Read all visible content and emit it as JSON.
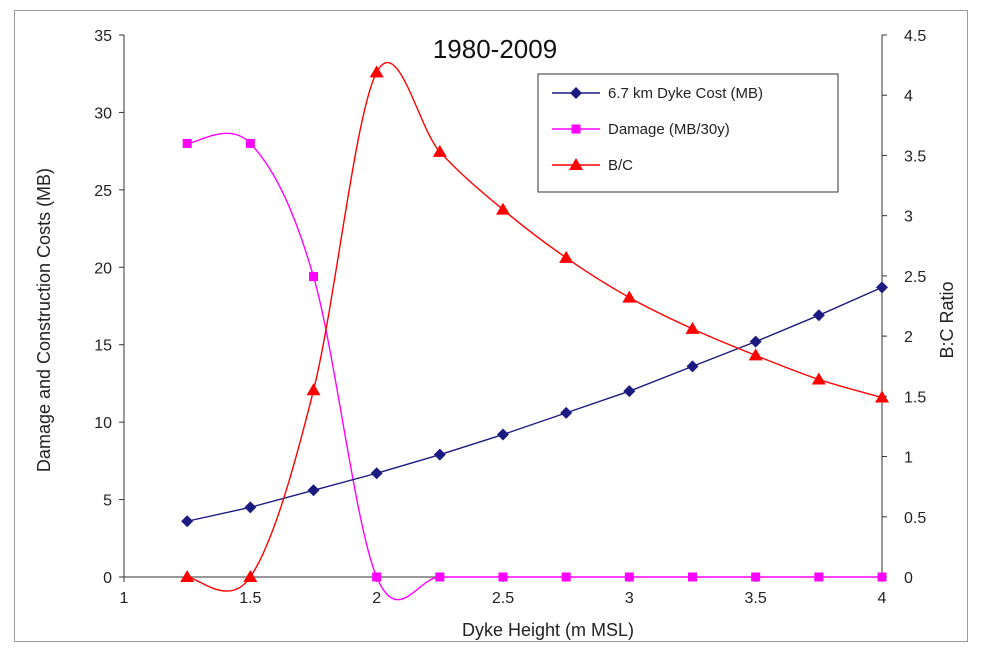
{
  "chart_data": {
    "type": "line",
    "title": "1980-2009",
    "xlabel": "Dyke Height  (m MSL)",
    "ylabel": "Damage and Construction Costs (MB)",
    "y2label": "B:C Ratio",
    "xlim": [
      1,
      4
    ],
    "ylim": [
      0,
      35
    ],
    "y2lim": [
      0,
      4.5
    ],
    "xticks": [
      "1",
      "1.5",
      "2",
      "2.5",
      "3",
      "3.5",
      "4"
    ],
    "yticks": [
      "0",
      "5",
      "10",
      "15",
      "20",
      "25",
      "30",
      "35"
    ],
    "y2ticks": [
      "0",
      "0.5",
      "1",
      "1.5",
      "2",
      "2.5",
      "3",
      "3.5",
      "4",
      "4.5"
    ],
    "grid": false,
    "legend_position": "top-right",
    "x": [
      1.25,
      1.5,
      1.75,
      2.0,
      2.25,
      2.5,
      2.75,
      3.0,
      3.25,
      3.5,
      3.75,
      4.0
    ],
    "series": [
      {
        "name": "6.7 km Dyke Cost (MB)",
        "axis": "left",
        "color": "#1a1a80",
        "marker": "diamond",
        "values": [
          3.6,
          4.5,
          5.6,
          6.7,
          7.9,
          9.2,
          10.6,
          12.0,
          13.6,
          15.2,
          16.9,
          18.7
        ]
      },
      {
        "name": "Damage (MB/30y)",
        "axis": "left",
        "color": "#ff00ff",
        "marker": "square",
        "values": [
          28.0,
          28.0,
          19.4,
          0,
          0,
          0,
          0,
          0,
          0,
          0,
          0,
          0
        ]
      },
      {
        "name": "B/C",
        "axis": "right",
        "color": "#ff0000",
        "marker": "triangle",
        "values": [
          0,
          0,
          1.55,
          4.19,
          3.53,
          3.05,
          2.65,
          2.32,
          2.06,
          1.84,
          1.64,
          1.49
        ]
      }
    ]
  }
}
